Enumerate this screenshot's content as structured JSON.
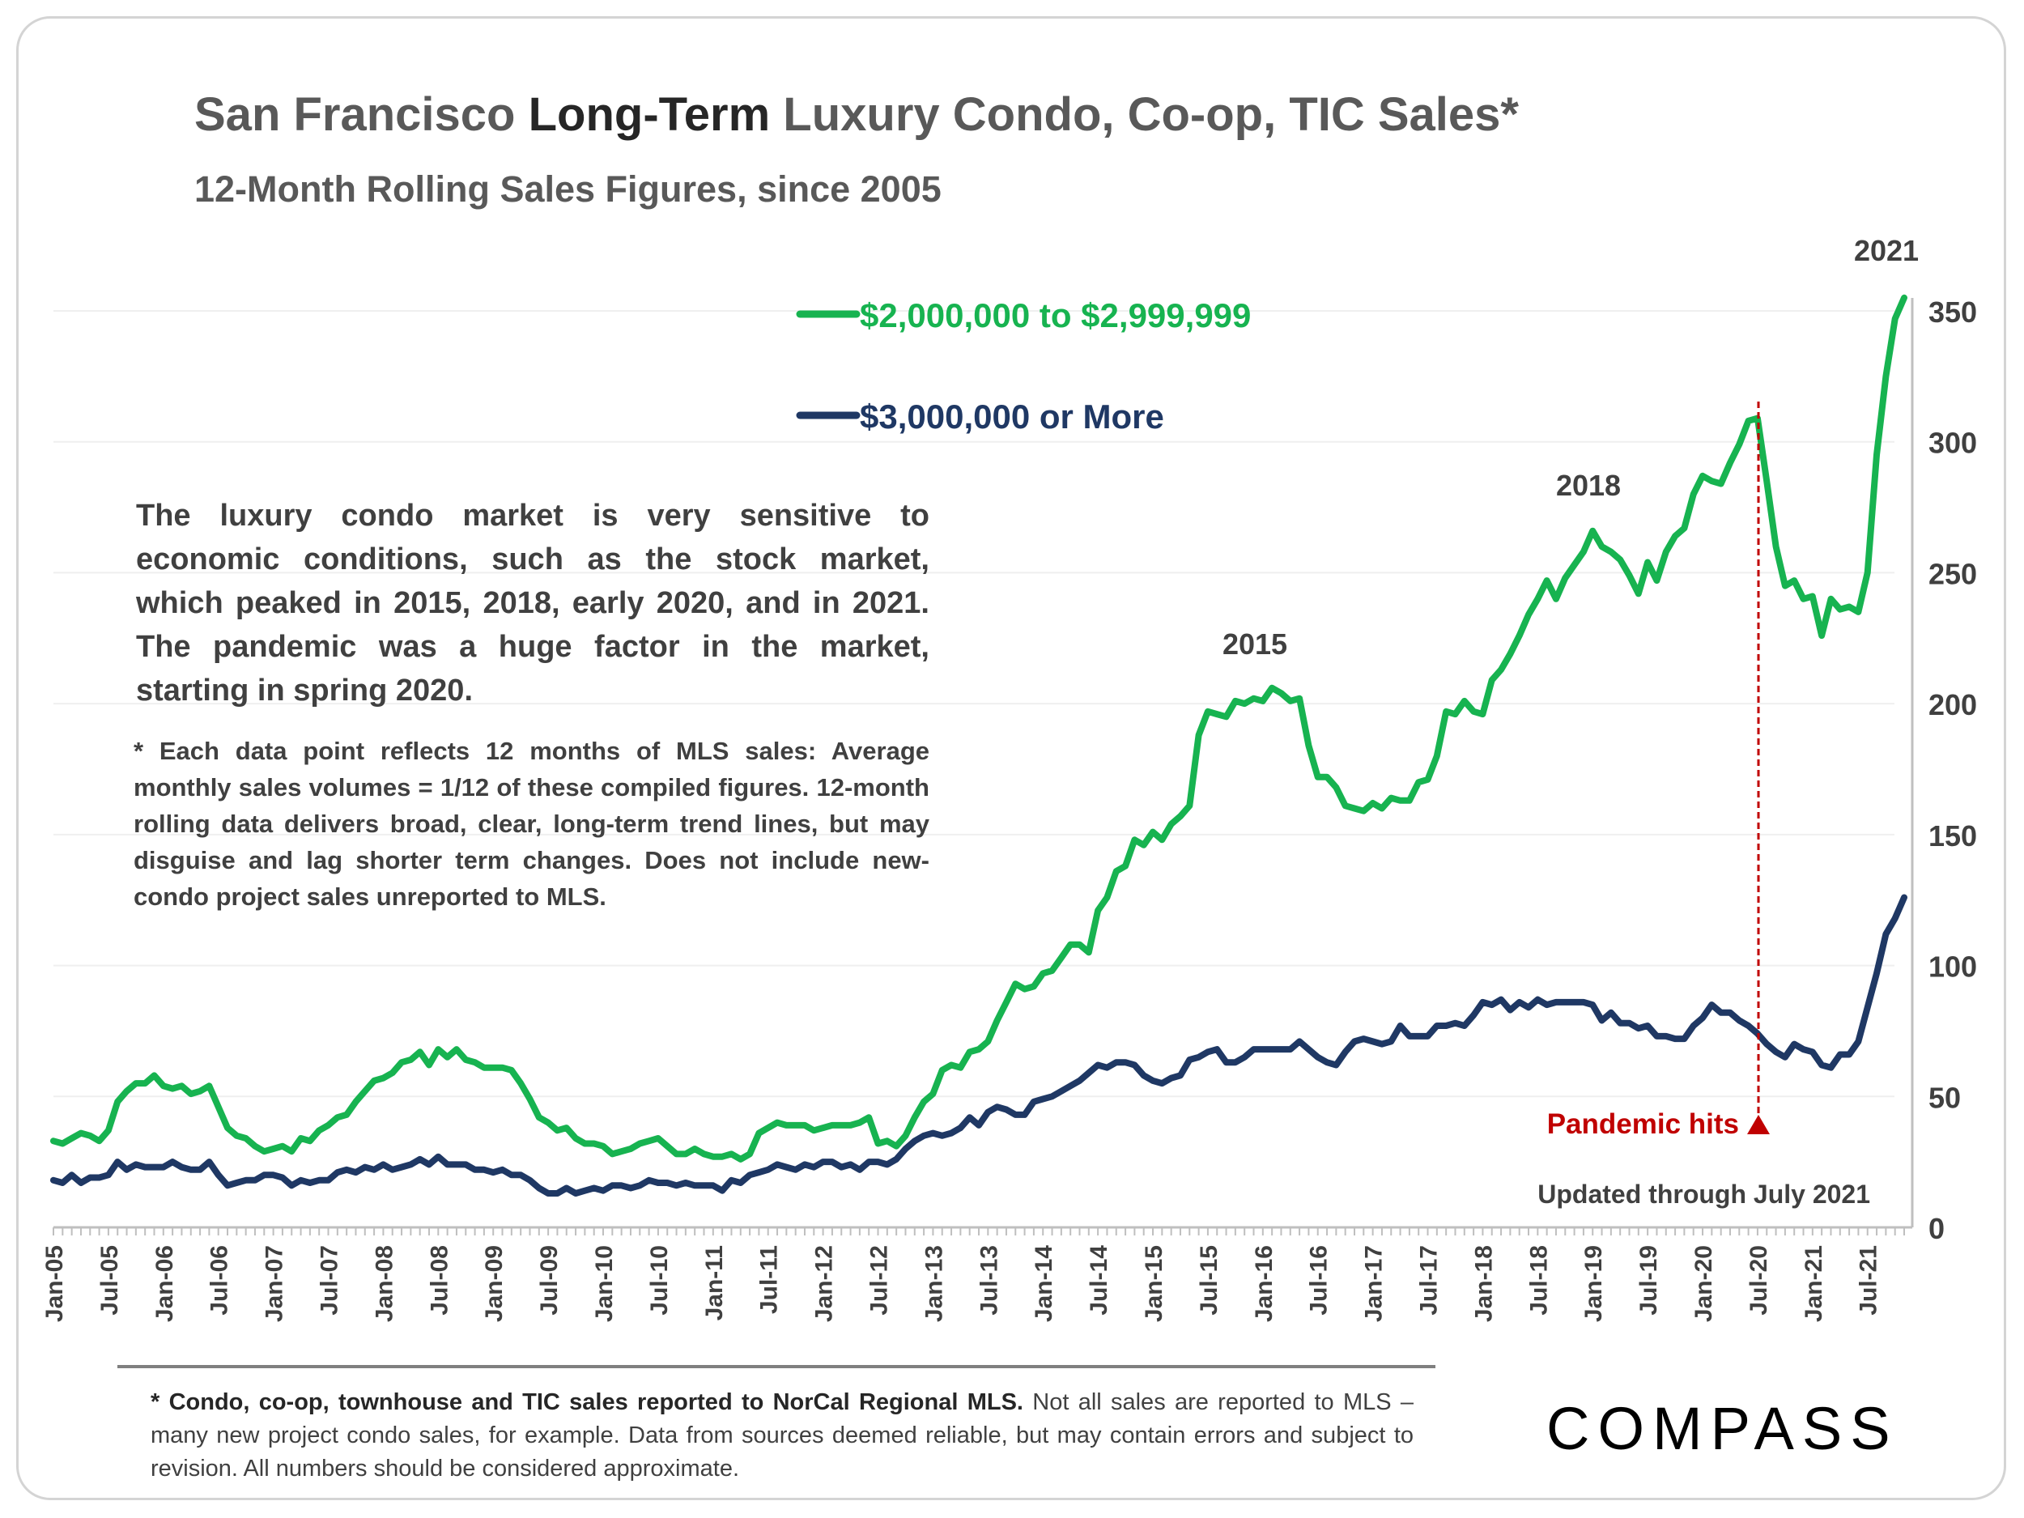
{
  "title": {
    "part1": "San Francisco ",
    "emphasis": "Long-Term",
    "part2": " Luxury Condo, Co-op, TIC Sales*"
  },
  "subtitle": "12-Month Rolling Sales Figures, since 2005",
  "description": "The luxury condo market is very sensitive to economic conditions, such as the stock market, which peaked in 2015, 2018, early 2020, and in 2021. The pandemic was a huge factor in the market, starting in spring 2020.",
  "note": "* Each data point reflects 12 months of MLS sales:  Average monthly sales volumes = 1/12 of these compiled figures. 12-month rolling data delivers broad, clear, long-term trend lines, but may disguise and lag shorter term changes. Does not include new-condo project sales unreported to MLS.",
  "footnote": {
    "bold": "* Condo, co-op, townhouse and TIC sales reported to NorCal Regional MLS.",
    "rest": " Not all sales are reported to MLS – many new project condo sales, for example. Data from sources deemed reliable, but may contain errors and subject to revision. All numbers should be considered approximate."
  },
  "logo_text": "COMPASS",
  "colors": {
    "green": "#17b350",
    "navy": "#1f3864",
    "red": "#c00000",
    "grid": "#efefef",
    "axis": "#bfbfbf",
    "text": "#404040"
  },
  "chart_data": {
    "type": "line",
    "title": "San Francisco Long-Term Luxury Condo, Co-op, TIC Sales*",
    "x_start": "Jan-05",
    "x_end": "Jul-21",
    "x_tick_labels": [
      "Jan-05",
      "Jul-05",
      "Jan-06",
      "Jul-06",
      "Jan-07",
      "Jul-07",
      "Jan-08",
      "Jul-08",
      "Jan-09",
      "Jul-09",
      "Jan-10",
      "Jul-10",
      "Jan-11",
      "Jul-11",
      "Jan-12",
      "Jul-12",
      "Jan-13",
      "Jul-13",
      "Jan-14",
      "Jul-14",
      "Jan-15",
      "Jul-15",
      "Jan-16",
      "Jul-16",
      "Jan-17",
      "Jul-17",
      "Jan-18",
      "Jul-18",
      "Jan-19",
      "Jul-19",
      "Jan-20",
      "Jul-20",
      "Jan-21",
      "Jul-21"
    ],
    "ylim": [
      0,
      350
    ],
    "y_ticks": [
      0,
      50,
      100,
      150,
      200,
      250,
      300,
      350
    ],
    "series": [
      {
        "name": "$2,000,000 to $2,999,999",
        "color": "#17b350",
        "values": [
          33,
          32,
          34,
          36,
          35,
          33,
          37,
          48,
          52,
          55,
          55,
          58,
          54,
          53,
          54,
          51,
          52,
          54,
          46,
          38,
          35,
          34,
          31,
          29,
          30,
          31,
          29,
          34,
          33,
          37,
          39,
          42,
          43,
          48,
          52,
          56,
          57,
          59,
          63,
          64,
          67,
          62,
          68,
          65,
          68,
          64,
          63,
          61,
          61,
          61,
          60,
          55,
          49,
          42,
          40,
          37,
          38,
          34,
          32,
          32,
          31,
          28,
          29,
          30,
          32,
          33,
          34,
          31,
          28,
          28,
          30,
          28,
          27,
          27,
          28,
          26,
          28,
          36,
          38,
          40,
          39,
          39,
          39,
          37,
          38,
          39,
          39,
          39,
          40,
          42,
          32,
          33,
          31,
          35,
          42,
          48,
          51,
          60,
          62,
          61,
          67,
          68,
          71,
          79,
          86,
          93,
          91,
          92,
          97,
          98,
          103,
          108,
          108,
          105,
          121,
          126,
          136,
          138,
          148,
          146,
          151,
          148,
          154,
          157,
          161,
          188,
          197,
          196,
          195,
          201,
          200,
          202,
          201,
          206,
          204,
          201,
          202,
          184,
          172,
          172,
          168,
          161,
          160,
          159,
          162,
          160,
          164,
          163,
          163,
          170,
          171,
          180,
          197,
          196,
          201,
          197,
          196,
          209,
          213,
          219,
          226,
          234,
          240,
          247,
          240,
          248,
          253,
          258,
          266,
          260,
          258,
          255,
          249,
          242,
          254,
          247,
          258,
          264,
          267,
          280,
          287,
          285,
          284,
          292,
          299,
          308,
          309,
          285,
          260,
          245,
          247,
          240,
          241,
          226,
          240,
          236,
          237,
          235,
          250,
          295,
          325,
          347,
          355
        ]
      },
      {
        "name": "$3,000,000 or More",
        "color": "#1f3864",
        "values": [
          18,
          17,
          20,
          17,
          19,
          19,
          20,
          25,
          22,
          24,
          23,
          23,
          23,
          25,
          23,
          22,
          22,
          25,
          20,
          16,
          17,
          18,
          18,
          20,
          20,
          19,
          16,
          18,
          17,
          18,
          18,
          21,
          22,
          21,
          23,
          22,
          24,
          22,
          23,
          24,
          26,
          24,
          27,
          24,
          24,
          24,
          22,
          22,
          21,
          22,
          20,
          20,
          18,
          15,
          13,
          13,
          15,
          13,
          14,
          15,
          14,
          16,
          16,
          15,
          16,
          18,
          17,
          17,
          16,
          17,
          16,
          16,
          16,
          14,
          18,
          17,
          20,
          21,
          22,
          24,
          23,
          22,
          24,
          23,
          25,
          25,
          23,
          24,
          22,
          25,
          25,
          24,
          26,
          30,
          33,
          35,
          36,
          35,
          36,
          38,
          42,
          39,
          44,
          46,
          45,
          43,
          43,
          48,
          49,
          50,
          52,
          54,
          56,
          59,
          62,
          61,
          63,
          63,
          62,
          58,
          56,
          55,
          57,
          58,
          64,
          65,
          67,
          68,
          63,
          63,
          65,
          68,
          68,
          68,
          68,
          68,
          71,
          68,
          65,
          63,
          62,
          67,
          71,
          72,
          71,
          70,
          71,
          77,
          73,
          73,
          73,
          77,
          77,
          78,
          77,
          81,
          86,
          85,
          87,
          83,
          86,
          84,
          87,
          85,
          86,
          86,
          86,
          86,
          85,
          79,
          82,
          78,
          78,
          76,
          77,
          73,
          73,
          72,
          72,
          77,
          80,
          85,
          82,
          82,
          79,
          77,
          74,
          70,
          67,
          65,
          70,
          68,
          67,
          62,
          61,
          66,
          66,
          71,
          84,
          97,
          112,
          118,
          126
        ]
      }
    ],
    "annotations": [
      "2015",
      "2018",
      "2021",
      "Pandemic hits",
      "Updated through July 2021"
    ],
    "pandemic_marker_month": "Apr-20"
  }
}
